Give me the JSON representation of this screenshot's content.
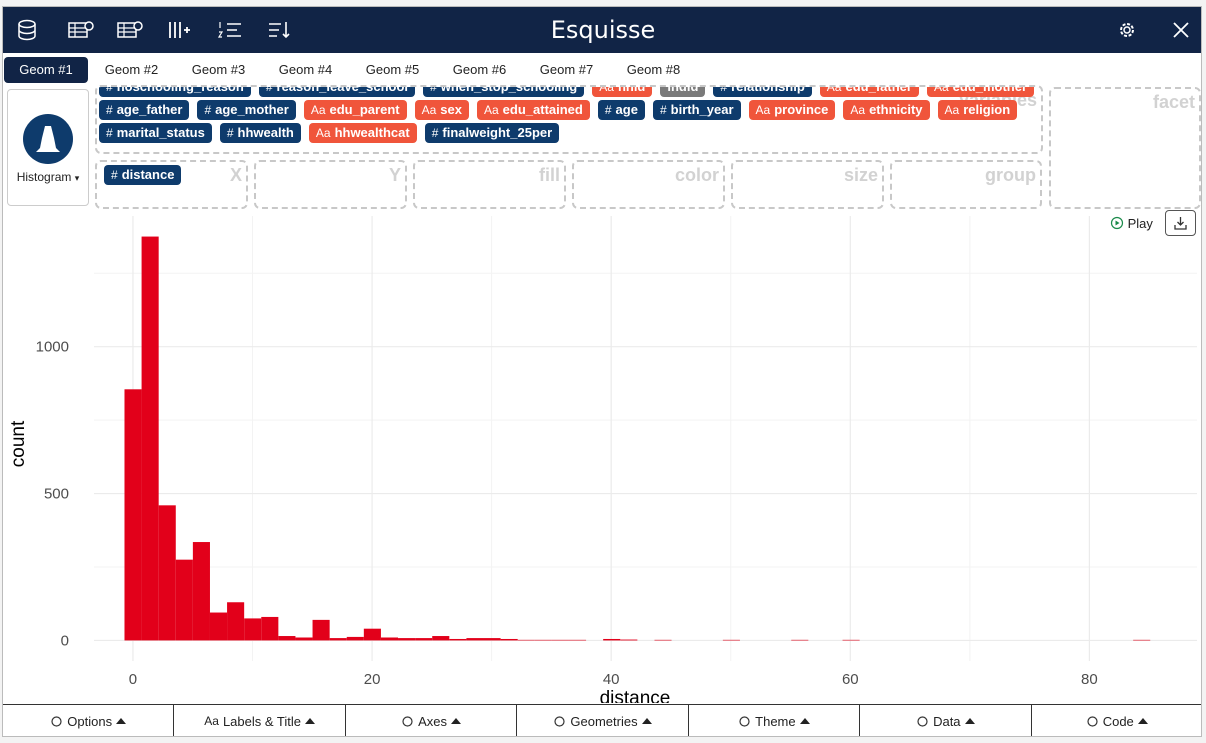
{
  "header": {
    "title": "Esquisse"
  },
  "tabs": {
    "items": [
      "Geom #1",
      "Geom #2",
      "Geom #3",
      "Geom #4",
      "Geom #5",
      "Geom #6",
      "Geom #7",
      "Geom #8"
    ],
    "active": 0
  },
  "geom_selector": {
    "label": "Histogram"
  },
  "variables": {
    "label": "Variables",
    "chips": [
      {
        "icon": "#",
        "label": "noschooling_reason",
        "color": "#0e3b6c"
      },
      {
        "icon": "#",
        "label": "reason_leave_school",
        "color": "#0e3b6c"
      },
      {
        "icon": "#",
        "label": "when_stop_schooling",
        "color": "#0e3b6c"
      },
      {
        "icon": "Aa",
        "label": "hhid",
        "color": "#f0553b"
      },
      {
        "label": "indid",
        "color": "#7a7a7a"
      },
      {
        "icon": "#",
        "label": "relationship",
        "color": "#0e3b6c"
      },
      {
        "icon": "Aa",
        "label": "edu_father",
        "color": "#f0553b"
      },
      {
        "icon": "Aa",
        "label": "edu_mother",
        "color": "#f0553b"
      },
      {
        "icon": "#",
        "label": "age_father",
        "color": "#0e3b6c"
      },
      {
        "icon": "#",
        "label": "age_mother",
        "color": "#0e3b6c"
      },
      {
        "icon": "Aa",
        "label": "edu_parent",
        "color": "#f0553b"
      },
      {
        "icon": "Aa",
        "label": "sex",
        "color": "#f0553b"
      },
      {
        "icon": "Aa",
        "label": "edu_attained",
        "color": "#f0553b"
      },
      {
        "icon": "#",
        "label": "age",
        "color": "#0e3b6c"
      },
      {
        "icon": "#",
        "label": "birth_year",
        "color": "#0e3b6c"
      },
      {
        "icon": "Aa",
        "label": "province",
        "color": "#f0553b"
      },
      {
        "icon": "Aa",
        "label": "ethnicity",
        "color": "#f0553b"
      },
      {
        "icon": "Aa",
        "label": "religion",
        "color": "#f0553b"
      },
      {
        "icon": "#",
        "label": "marital_status",
        "color": "#0e3b6c"
      },
      {
        "icon": "#",
        "label": "hhwealth",
        "color": "#0e3b6c"
      },
      {
        "icon": "Aa",
        "label": "hhwealthcat",
        "color": "#f0553b"
      },
      {
        "icon": "#",
        "label": "finalweight_25per",
        "color": "#0e3b6c"
      }
    ]
  },
  "facet": {
    "label": "facet"
  },
  "dropzones": [
    {
      "label": "X",
      "chip": {
        "icon": "#",
        "label": "distance",
        "color": "#0e3b6c"
      }
    },
    {
      "label": "Y"
    },
    {
      "label": "fill"
    },
    {
      "label": "color"
    },
    {
      "label": "size"
    },
    {
      "label": "group"
    }
  ],
  "play": {
    "label": "Play"
  },
  "chart_data": {
    "type": "histogram",
    "x_label": "distance",
    "y_label": "count",
    "color": "#e2001a",
    "bins": [
      -0.71,
      0.72,
      2.15,
      3.58,
      5.01,
      6.44,
      7.87,
      9.3,
      10.73,
      12.16,
      13.59,
      15.02,
      16.45,
      17.88,
      19.31,
      20.74,
      22.17,
      23.6,
      25.03,
      26.46,
      27.89,
      29.32,
      30.75,
      32.18,
      33.61,
      35.04,
      36.47,
      37.9,
      39.33,
      40.76,
      42.19,
      43.62,
      45.05,
      46.48,
      47.91,
      49.34,
      50.77,
      52.2,
      53.63,
      55.06,
      56.49,
      57.92,
      59.35,
      60.78,
      62.21,
      63.64,
      65.07,
      66.5,
      67.93,
      69.36,
      70.79,
      72.22,
      73.65,
      75.08,
      76.51,
      77.94,
      79.37,
      80.8,
      82.23,
      83.66,
      85.09
    ],
    "values": [
      855,
      1375,
      460,
      275,
      335,
      95,
      130,
      75,
      80,
      15,
      10,
      70,
      8,
      12,
      40,
      10,
      8,
      8,
      15,
      5,
      8,
      8,
      5,
      2,
      2,
      2,
      2,
      0,
      5,
      3,
      0,
      2,
      0,
      0,
      0,
      2,
      0,
      0,
      0,
      2,
      0,
      0,
      2,
      0,
      0,
      0,
      0,
      0,
      0,
      0,
      0,
      0,
      0,
      0,
      0,
      0,
      0,
      0,
      0,
      2
    ],
    "xlim": [
      -3.26,
      89.0
    ],
    "ylim": [
      -70,
      1445
    ],
    "xticks": [
      0,
      20,
      40,
      60,
      80
    ],
    "yticks": [
      0,
      500,
      1000
    ],
    "grid": true
  },
  "toolbar": [
    {
      "label": "Options"
    },
    {
      "icon": "Aa",
      "label": "Labels & Title"
    },
    {
      "label": "Axes"
    },
    {
      "label": "Geometries"
    },
    {
      "label": "Theme"
    },
    {
      "label": "Data"
    },
    {
      "label": "Code"
    }
  ]
}
